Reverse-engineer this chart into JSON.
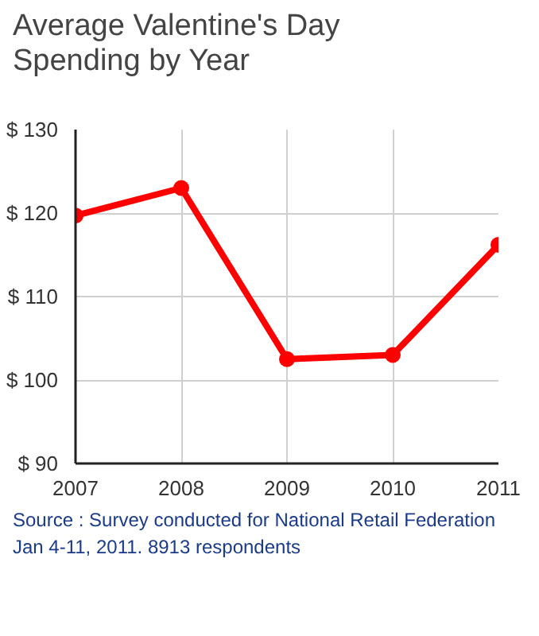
{
  "chart_data": {
    "type": "line",
    "title": "Average Valentine's Day Spending by Year",
    "x": [
      2007,
      2008,
      2009,
      2010,
      2011
    ],
    "series": [
      {
        "color": "#ff0000",
        "values": [
          119.7,
          123.0,
          102.5,
          103.0,
          116.2
        ]
      }
    ],
    "xlim": [
      2007,
      2011
    ],
    "xticks": [
      2007,
      2008,
      2009,
      2010,
      2011
    ],
    "ylim": [
      90,
      130
    ],
    "yticks": [
      {
        "value": 90,
        "label": "$ 90"
      },
      {
        "value": 100,
        "label": "$ 100"
      },
      {
        "value": 110,
        "label": "$ 110"
      },
      {
        "value": 120,
        "label": "$ 120"
      },
      {
        "value": 130,
        "label": "$ 130"
      }
    ],
    "grid": true,
    "marker": "circle",
    "line_style": "solid",
    "annotations": [
      "Source : Survey conducted for National Retail Federation Jan 4-11, 2011. 8913 respondents"
    ]
  }
}
